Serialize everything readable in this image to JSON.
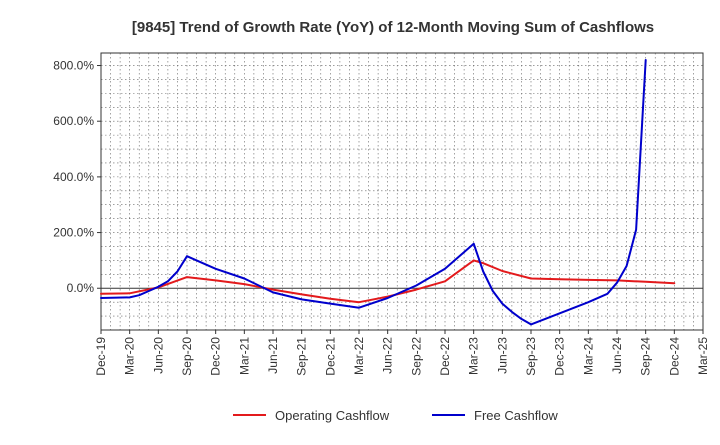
{
  "chart_data": {
    "type": "line",
    "title": "[9845]  Trend of Growth Rate (YoY) of 12-Month Moving Sum of Cashflows",
    "xlabel": "",
    "ylabel": "",
    "x_ticks": [
      "Dec-19",
      "Mar-20",
      "Jun-20",
      "Sep-20",
      "Dec-20",
      "Mar-21",
      "Jun-21",
      "Sep-21",
      "Dec-21",
      "Mar-22",
      "Jun-22",
      "Sep-22",
      "Dec-22",
      "Mar-23",
      "Jun-23",
      "Sep-23",
      "Dec-23",
      "Mar-24",
      "Jun-24",
      "Sep-24",
      "Dec-24",
      "Mar-25"
    ],
    "y_ticks": [
      "0.0%",
      "200.0%",
      "400.0%",
      "600.0%",
      "800.0%"
    ],
    "y_tick_values": [
      0,
      200,
      400,
      600,
      800
    ],
    "ylim": [
      -150,
      845
    ],
    "xlim": [
      0,
      63
    ],
    "grid": true,
    "legend_position": "bottom",
    "series": [
      {
        "name": "Operating Cashflow",
        "color": "#e31a1c",
        "x": [
          0,
          3,
          6,
          9,
          12,
          15,
          18,
          21,
          24,
          27,
          30,
          33,
          36,
          39,
          40,
          42,
          45,
          48,
          51,
          54,
          57,
          60
        ],
        "values": [
          -20,
          -18,
          3,
          40,
          28,
          15,
          -5,
          -22,
          -38,
          -50,
          -30,
          -5,
          25,
          100,
          90,
          62,
          35,
          32,
          30,
          28,
          23,
          18
        ]
      },
      {
        "name": "Free Cashflow",
        "color": "#0000cc",
        "x": [
          0,
          3,
          4,
          5,
          6,
          7,
          8,
          9,
          10,
          12,
          15,
          18,
          21,
          24,
          27,
          30,
          33,
          36,
          37,
          38,
          39,
          40,
          41,
          42,
          43,
          44,
          45,
          48,
          51,
          53,
          54,
          55,
          56,
          57
        ],
        "values": [
          -35,
          -33,
          -25,
          -10,
          5,
          25,
          60,
          115,
          100,
          70,
          35,
          -15,
          -40,
          -55,
          -70,
          -35,
          10,
          70,
          100,
          130,
          160,
          60,
          -10,
          -55,
          -85,
          -110,
          -130,
          -90,
          -50,
          -20,
          20,
          80,
          210,
          820
        ]
      }
    ]
  }
}
